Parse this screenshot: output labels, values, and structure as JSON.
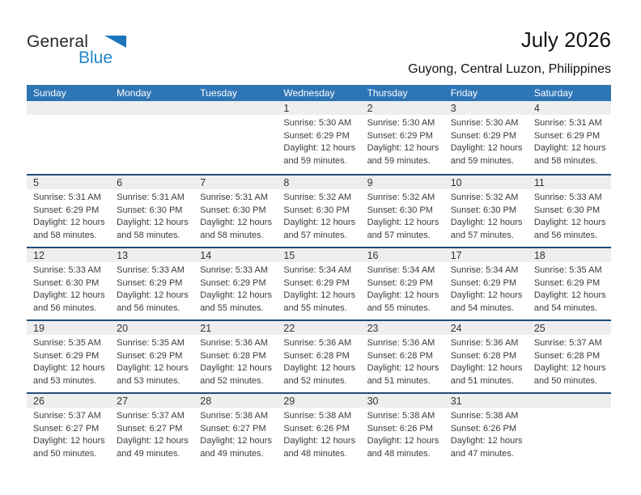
{
  "logo": {
    "part1": "General",
    "part2": "Blue"
  },
  "header": {
    "title": "July 2026",
    "subtitle": "Guyong, Central Luzon, Philippines"
  },
  "colors": {
    "header_bar": "#2e75b6",
    "row_separator": "#1f4e79",
    "day_strip": "#eeeeee",
    "logo_blue": "#1e87c7"
  },
  "weekdays": [
    "Sunday",
    "Monday",
    "Tuesday",
    "Wednesday",
    "Thursday",
    "Friday",
    "Saturday"
  ],
  "weeks": [
    {
      "cells": [
        {
          "day": "",
          "sunrise": "",
          "sunset": "",
          "daylight1": "",
          "daylight2": ""
        },
        {
          "day": "",
          "sunrise": "",
          "sunset": "",
          "daylight1": "",
          "daylight2": ""
        },
        {
          "day": "",
          "sunrise": "",
          "sunset": "",
          "daylight1": "",
          "daylight2": ""
        },
        {
          "day": "1",
          "sunrise": "Sunrise: 5:30 AM",
          "sunset": "Sunset: 6:29 PM",
          "daylight1": "Daylight: 12 hours",
          "daylight2": "and 59 minutes."
        },
        {
          "day": "2",
          "sunrise": "Sunrise: 5:30 AM",
          "sunset": "Sunset: 6:29 PM",
          "daylight1": "Daylight: 12 hours",
          "daylight2": "and 59 minutes."
        },
        {
          "day": "3",
          "sunrise": "Sunrise: 5:30 AM",
          "sunset": "Sunset: 6:29 PM",
          "daylight1": "Daylight: 12 hours",
          "daylight2": "and 59 minutes."
        },
        {
          "day": "4",
          "sunrise": "Sunrise: 5:31 AM",
          "sunset": "Sunset: 6:29 PM",
          "daylight1": "Daylight: 12 hours",
          "daylight2": "and 58 minutes."
        }
      ]
    },
    {
      "cells": [
        {
          "day": "5",
          "sunrise": "Sunrise: 5:31 AM",
          "sunset": "Sunset: 6:29 PM",
          "daylight1": "Daylight: 12 hours",
          "daylight2": "and 58 minutes."
        },
        {
          "day": "6",
          "sunrise": "Sunrise: 5:31 AM",
          "sunset": "Sunset: 6:30 PM",
          "daylight1": "Daylight: 12 hours",
          "daylight2": "and 58 minutes."
        },
        {
          "day": "7",
          "sunrise": "Sunrise: 5:31 AM",
          "sunset": "Sunset: 6:30 PM",
          "daylight1": "Daylight: 12 hours",
          "daylight2": "and 58 minutes."
        },
        {
          "day": "8",
          "sunrise": "Sunrise: 5:32 AM",
          "sunset": "Sunset: 6:30 PM",
          "daylight1": "Daylight: 12 hours",
          "daylight2": "and 57 minutes."
        },
        {
          "day": "9",
          "sunrise": "Sunrise: 5:32 AM",
          "sunset": "Sunset: 6:30 PM",
          "daylight1": "Daylight: 12 hours",
          "daylight2": "and 57 minutes."
        },
        {
          "day": "10",
          "sunrise": "Sunrise: 5:32 AM",
          "sunset": "Sunset: 6:30 PM",
          "daylight1": "Daylight: 12 hours",
          "daylight2": "and 57 minutes."
        },
        {
          "day": "11",
          "sunrise": "Sunrise: 5:33 AM",
          "sunset": "Sunset: 6:30 PM",
          "daylight1": "Daylight: 12 hours",
          "daylight2": "and 56 minutes."
        }
      ]
    },
    {
      "cells": [
        {
          "day": "12",
          "sunrise": "Sunrise: 5:33 AM",
          "sunset": "Sunset: 6:30 PM",
          "daylight1": "Daylight: 12 hours",
          "daylight2": "and 56 minutes."
        },
        {
          "day": "13",
          "sunrise": "Sunrise: 5:33 AM",
          "sunset": "Sunset: 6:29 PM",
          "daylight1": "Daylight: 12 hours",
          "daylight2": "and 56 minutes."
        },
        {
          "day": "14",
          "sunrise": "Sunrise: 5:33 AM",
          "sunset": "Sunset: 6:29 PM",
          "daylight1": "Daylight: 12 hours",
          "daylight2": "and 55 minutes."
        },
        {
          "day": "15",
          "sunrise": "Sunrise: 5:34 AM",
          "sunset": "Sunset: 6:29 PM",
          "daylight1": "Daylight: 12 hours",
          "daylight2": "and 55 minutes."
        },
        {
          "day": "16",
          "sunrise": "Sunrise: 5:34 AM",
          "sunset": "Sunset: 6:29 PM",
          "daylight1": "Daylight: 12 hours",
          "daylight2": "and 55 minutes."
        },
        {
          "day": "17",
          "sunrise": "Sunrise: 5:34 AM",
          "sunset": "Sunset: 6:29 PM",
          "daylight1": "Daylight: 12 hours",
          "daylight2": "and 54 minutes."
        },
        {
          "day": "18",
          "sunrise": "Sunrise: 5:35 AM",
          "sunset": "Sunset: 6:29 PM",
          "daylight1": "Daylight: 12 hours",
          "daylight2": "and 54 minutes."
        }
      ]
    },
    {
      "cells": [
        {
          "day": "19",
          "sunrise": "Sunrise: 5:35 AM",
          "sunset": "Sunset: 6:29 PM",
          "daylight1": "Daylight: 12 hours",
          "daylight2": "and 53 minutes."
        },
        {
          "day": "20",
          "sunrise": "Sunrise: 5:35 AM",
          "sunset": "Sunset: 6:29 PM",
          "daylight1": "Daylight: 12 hours",
          "daylight2": "and 53 minutes."
        },
        {
          "day": "21",
          "sunrise": "Sunrise: 5:36 AM",
          "sunset": "Sunset: 6:28 PM",
          "daylight1": "Daylight: 12 hours",
          "daylight2": "and 52 minutes."
        },
        {
          "day": "22",
          "sunrise": "Sunrise: 5:36 AM",
          "sunset": "Sunset: 6:28 PM",
          "daylight1": "Daylight: 12 hours",
          "daylight2": "and 52 minutes."
        },
        {
          "day": "23",
          "sunrise": "Sunrise: 5:36 AM",
          "sunset": "Sunset: 6:28 PM",
          "daylight1": "Daylight: 12 hours",
          "daylight2": "and 51 minutes."
        },
        {
          "day": "24",
          "sunrise": "Sunrise: 5:36 AM",
          "sunset": "Sunset: 6:28 PM",
          "daylight1": "Daylight: 12 hours",
          "daylight2": "and 51 minutes."
        },
        {
          "day": "25",
          "sunrise": "Sunrise: 5:37 AM",
          "sunset": "Sunset: 6:28 PM",
          "daylight1": "Daylight: 12 hours",
          "daylight2": "and 50 minutes."
        }
      ]
    },
    {
      "cells": [
        {
          "day": "26",
          "sunrise": "Sunrise: 5:37 AM",
          "sunset": "Sunset: 6:27 PM",
          "daylight1": "Daylight: 12 hours",
          "daylight2": "and 50 minutes."
        },
        {
          "day": "27",
          "sunrise": "Sunrise: 5:37 AM",
          "sunset": "Sunset: 6:27 PM",
          "daylight1": "Daylight: 12 hours",
          "daylight2": "and 49 minutes."
        },
        {
          "day": "28",
          "sunrise": "Sunrise: 5:38 AM",
          "sunset": "Sunset: 6:27 PM",
          "daylight1": "Daylight: 12 hours",
          "daylight2": "and 49 minutes."
        },
        {
          "day": "29",
          "sunrise": "Sunrise: 5:38 AM",
          "sunset": "Sunset: 6:26 PM",
          "daylight1": "Daylight: 12 hours",
          "daylight2": "and 48 minutes."
        },
        {
          "day": "30",
          "sunrise": "Sunrise: 5:38 AM",
          "sunset": "Sunset: 6:26 PM",
          "daylight1": "Daylight: 12 hours",
          "daylight2": "and 48 minutes."
        },
        {
          "day": "31",
          "sunrise": "Sunrise: 5:38 AM",
          "sunset": "Sunset: 6:26 PM",
          "daylight1": "Daylight: 12 hours",
          "daylight2": "and 47 minutes."
        },
        {
          "day": "",
          "sunrise": "",
          "sunset": "",
          "daylight1": "",
          "daylight2": ""
        }
      ]
    }
  ]
}
